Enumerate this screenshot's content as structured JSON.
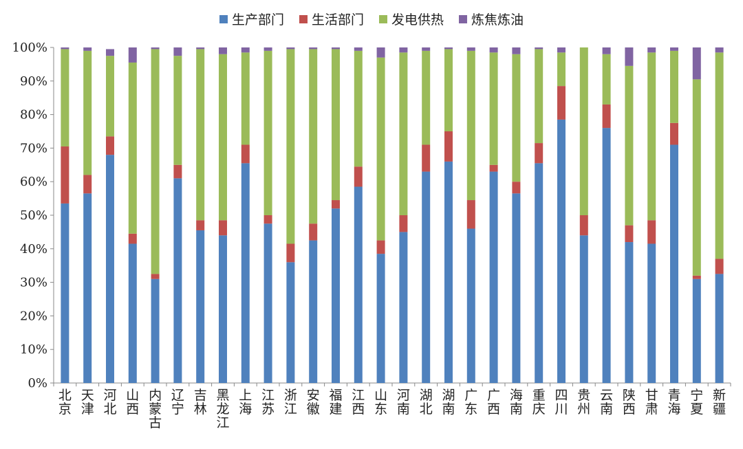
{
  "chart_data": {
    "type": "bar",
    "stacked": true,
    "legend_position": "top",
    "ylim": [
      0,
      100
    ],
    "y_ticks": [
      "0%",
      "10%",
      "20%",
      "30%",
      "40%",
      "50%",
      "60%",
      "70%",
      "80%",
      "90%",
      "100%"
    ],
    "categories": [
      "北京",
      "天津",
      "河北",
      "山西",
      "内蒙古",
      "辽宁",
      "吉林",
      "黑龙江",
      "上海",
      "江苏",
      "浙江",
      "安徽",
      "福建",
      "江西",
      "山东",
      "河南",
      "湖北",
      "湖南",
      "广东",
      "广西",
      "海南",
      "重庆",
      "四川",
      "贵州",
      "云南",
      "陕西",
      "甘肃",
      "青海",
      "宁夏",
      "新疆"
    ],
    "series": [
      {
        "name": "生产部门",
        "color": "#4f81bd",
        "values": [
          53.5,
          56.5,
          68,
          41.5,
          31,
          61,
          45.5,
          44,
          65.5,
          47.5,
          36,
          42.5,
          52,
          58.5,
          38.5,
          45,
          63,
          66,
          46,
          63,
          56.5,
          65.5,
          78.5,
          44,
          76,
          42,
          41.5,
          71,
          31,
          32.5
        ]
      },
      {
        "name": "生活部门",
        "color": "#c0504d",
        "values": [
          17,
          5.5,
          5.5,
          3,
          1.5,
          4,
          3,
          4.5,
          5.5,
          2.5,
          5.5,
          5,
          2.5,
          6,
          4,
          5,
          8,
          9,
          8.5,
          2,
          3.5,
          6,
          10,
          6,
          7,
          5,
          7,
          6.5,
          1,
          4.5
        ]
      },
      {
        "name": "发电供热",
        "color": "#9bbb59",
        "values": [
          29,
          37,
          24,
          51,
          67,
          32.5,
          51,
          49.5,
          27.5,
          49,
          58,
          52,
          45,
          34.5,
          54.5,
          48.5,
          28,
          24.5,
          44.5,
          33.5,
          38,
          28,
          10,
          50,
          15,
          47.5,
          50,
          21.5,
          58.5,
          61.5
        ]
      },
      {
        "name": "炼焦炼油",
        "color": "#8064a2",
        "values": [
          0.5,
          1,
          2,
          4.5,
          0.5,
          2.5,
          0.5,
          2,
          1.5,
          1,
          0.5,
          0.5,
          0.5,
          1,
          3,
          1.5,
          1,
          0.5,
          1,
          1.5,
          2,
          0.5,
          1.5,
          0,
          2,
          5.5,
          1.5,
          1,
          9.5,
          1.5
        ]
      }
    ]
  }
}
